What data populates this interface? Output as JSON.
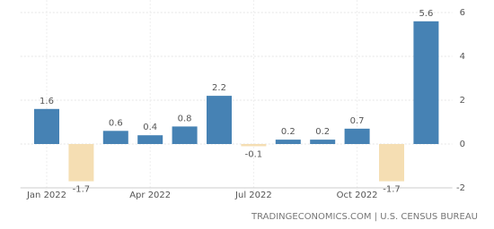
{
  "chart_data": {
    "type": "bar",
    "categories": [
      "Jan 2022",
      null,
      null,
      "Apr 2022",
      null,
      null,
      "Jul 2022",
      null,
      null,
      "Oct 2022",
      null,
      null
    ],
    "values": [
      1.6,
      -1.7,
      0.6,
      0.4,
      0.8,
      2.2,
      -0.1,
      0.2,
      0.2,
      0.7,
      -1.7,
      5.6
    ],
    "positive_color": "#4682b4",
    "negative_color": "#f5deb3",
    "ylim": [
      -2,
      6
    ],
    "yticks": [
      -2,
      0,
      2,
      4,
      6
    ],
    "grid": true,
    "source": "TRADINGECONOMICS.COM | U.S. CENSUS BUREAU"
  }
}
